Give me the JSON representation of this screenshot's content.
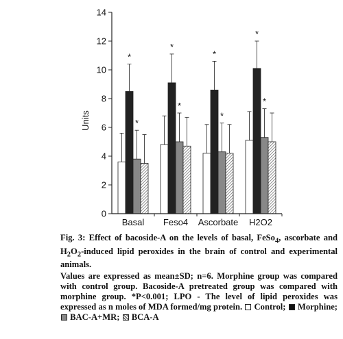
{
  "chart_data": {
    "type": "bar",
    "ylabel": "Units",
    "ylim": [
      0,
      14
    ],
    "yticks": [
      "0",
      "2",
      "4",
      "6",
      "8",
      "10",
      "12",
      "14"
    ],
    "categories": [
      "Basal",
      "Feso4",
      "Ascorbate",
      "H2O2"
    ],
    "series": [
      {
        "name": "Control",
        "values": [
          3.6,
          4.8,
          4.2,
          5.1
        ],
        "sd": [
          2.0,
          2.0,
          2.0,
          2.0
        ],
        "color": "#ffffff",
        "pattern": "none"
      },
      {
        "name": "Morphine",
        "values": [
          8.5,
          9.1,
          8.6,
          10.1
        ],
        "sd": [
          1.9,
          2.0,
          2.0,
          1.9
        ],
        "color": "#222222",
        "pattern": "none"
      },
      {
        "name": "BAC-A+MR",
        "values": [
          3.8,
          5.0,
          4.3,
          5.3
        ],
        "sd": [
          2.0,
          2.0,
          2.0,
          2.0
        ],
        "color": "#888888",
        "pattern": "none"
      },
      {
        "name": "BCA-A",
        "values": [
          3.5,
          4.7,
          4.2,
          5.0
        ],
        "sd": [
          2.0,
          2.0,
          2.0,
          2.0
        ],
        "color": "#ffffff",
        "pattern": "hatch"
      }
    ],
    "annotations": [
      {
        "text": "*",
        "category": "Basal",
        "series": "Morphine"
      },
      {
        "text": "*",
        "category": "Basal",
        "series": "BAC-A+MR"
      },
      {
        "text": "*",
        "category": "Feso4",
        "series": "Morphine"
      },
      {
        "text": "*",
        "category": "Feso4",
        "series": "BAC-A+MR"
      },
      {
        "text": "*",
        "category": "Ascorbate",
        "series": "Morphine"
      },
      {
        "text": "*",
        "category": "Ascorbate",
        "series": "BAC-A+MR"
      },
      {
        "text": "*",
        "category": "H2O2",
        "series": "Morphine"
      },
      {
        "text": "*",
        "category": "H2O2",
        "series": "BAC-A+MR"
      }
    ],
    "grid": false
  },
  "caption": {
    "title": "Fig. 3: Effect of bacoside-A on the levels of basal, FeSo4, ascorbate and H2O2-induced lipid peroxides in the brain of control and experimental animals.",
    "title_parts": {
      "a": "Fig. 3: Effect of bacoside-A on the levels of basal, FeSo",
      "sub1": "4",
      "b": ", ascorbate and H",
      "sub2": "2",
      "c": "O",
      "sub3": "2",
      "d": "-induced lipid peroxides in the brain of control and experimental animals."
    },
    "body": "Values are expressed as mean±SD; n=6. Morphine group was compared with control group. Bacoside-A pretreated group was compared with morphine group. ",
    "pvalue": "*P<0.001; LPO - The level of lipid peroxides was expressed as n moles of MDA formed/mg protein.",
    "legend": [
      "Control;",
      "Morphine;",
      "BAC-A+MR;",
      "BCA-A"
    ]
  }
}
